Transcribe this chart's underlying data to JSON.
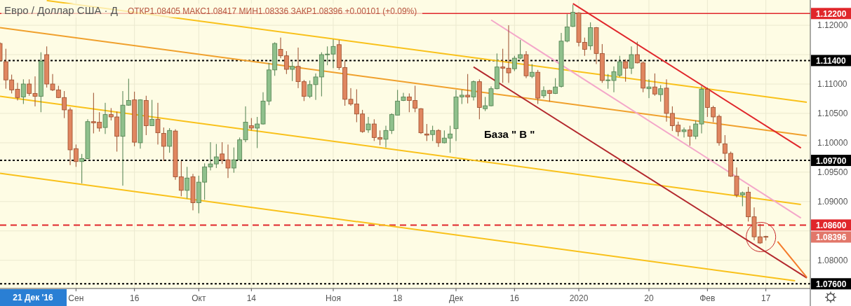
{
  "chart_data": {
    "type": "candlestick",
    "title": "Евро / Доллар США · Д",
    "subtitle": "ОТКР1.08405 МАКС1.08417 МИН1.08336 ЗАКР1.08396 +0.00101 (+0.09%)",
    "categories": [
      null,
      null,
      null,
      null,
      null,
      null,
      null,
      null,
      null,
      null,
      null,
      null,
      null,
      "Сен",
      null,
      null,
      null,
      null,
      null,
      null,
      null,
      null,
      null,
      "16",
      null,
      null,
      null,
      null,
      null,
      null,
      null,
      null,
      null,
      null,
      "Окт",
      null,
      null,
      null,
      null,
      null,
      null,
      null,
      null,
      "14",
      null,
      null,
      null,
      null,
      null,
      null,
      null,
      null,
      null,
      null,
      null,
      null,
      null,
      "Ноя",
      null,
      null,
      null,
      null,
      null,
      null,
      null,
      null,
      null,
      null,
      "18",
      null,
      null,
      null,
      null,
      null,
      null,
      null,
      null,
      null,
      "Дек",
      null,
      null,
      null,
      null,
      null,
      null,
      null,
      null,
      null,
      "16",
      null,
      null,
      null,
      null,
      null,
      null,
      null,
      null,
      null,
      null,
      "2020",
      null,
      null,
      null,
      null,
      null,
      null,
      null,
      null,
      null,
      null,
      null,
      "20",
      null,
      null,
      null,
      null,
      null,
      null,
      null,
      null,
      null,
      "Фев",
      null,
      null,
      null,
      null,
      null,
      null,
      null,
      null,
      null,
      "17",
      null,
      null,
      null,
      null,
      null,
      null,
      null
    ],
    "ohlc": [
      [
        1.1169,
        1.1171,
        1.1138,
        1.114
      ],
      [
        1.1138,
        1.116,
        1.1092,
        1.1107
      ],
      [
        1.1107,
        1.1116,
        1.1084,
        1.109
      ],
      [
        1.1091,
        1.1102,
        1.1072,
        1.1077
      ],
      [
        1.1078,
        1.1108,
        1.1066,
        1.11
      ],
      [
        1.11,
        1.1108,
        1.108,
        1.1084
      ],
      [
        1.1084,
        1.1113,
        1.1062,
        1.1079
      ],
      [
        1.1079,
        1.1154,
        1.1052,
        1.1139
      ],
      [
        1.115,
        1.1164,
        1.1094,
        1.11
      ],
      [
        1.11,
        1.1117,
        1.1088,
        1.109
      ],
      [
        1.109,
        1.1097,
        1.1076,
        1.1077
      ],
      [
        1.1077,
        1.1088,
        1.1042,
        1.1056
      ],
      [
        1.1056,
        1.106,
        1.0962,
        1.0988
      ],
      [
        1.099,
        1.0997,
        1.0959,
        1.0968
      ],
      [
        1.0968,
        1.0981,
        1.0931,
        1.0973
      ],
      [
        1.0973,
        1.104,
        1.0972,
        1.1036
      ],
      [
        1.1036,
        1.1085,
        1.1016,
        1.1034
      ],
      [
        1.1035,
        1.1052,
        1.1019,
        1.1025
      ],
      [
        1.1026,
        1.1068,
        1.1015,
        1.1048
      ],
      [
        1.1048,
        1.1059,
        1.1038,
        1.1044
      ],
      [
        1.1044,
        1.1053,
        1.0985,
        1.1011
      ],
      [
        1.1011,
        1.1088,
        1.0927,
        1.1064
      ],
      [
        1.1064,
        1.1109,
        1.1063,
        1.1072
      ],
      [
        1.1073,
        1.1087,
        1.0994,
        1.1001
      ],
      [
        1.1,
        1.1074,
        1.099,
        1.1073
      ],
      [
        1.1072,
        1.108,
        1.1013,
        1.1029
      ],
      [
        1.1029,
        1.1073,
        1.1029,
        1.104
      ],
      [
        1.104,
        1.1068,
        1.0997,
        1.1017
      ],
      [
        1.1016,
        1.1026,
        1.0969,
        1.0994
      ],
      [
        1.0994,
        1.1025,
        1.0983,
        1.1021
      ],
      [
        1.102,
        1.1023,
        1.0937,
        1.0942
      ],
      [
        1.0942,
        1.0969,
        1.0909,
        1.0919
      ],
      [
        1.0919,
        1.0959,
        1.0905,
        1.094
      ],
      [
        1.0942,
        1.0947,
        1.0885,
        1.0898
      ],
      [
        1.0898,
        1.0944,
        1.088,
        1.0933
      ],
      [
        1.0933,
        1.0965,
        1.0903,
        1.0959
      ],
      [
        1.0959,
        1.1001,
        1.0953,
        1.0964
      ],
      [
        1.0964,
        1.0998,
        1.0957,
        1.0976
      ],
      [
        1.0981,
        1.1001,
        1.0964,
        1.0971
      ],
      [
        1.0971,
        1.0997,
        1.094,
        1.0957
      ],
      [
        1.0957,
        1.0992,
        1.0949,
        1.0971
      ],
      [
        1.0971,
        1.1009,
        1.097,
        1.1005
      ],
      [
        1.1005,
        1.1062,
        1.1001,
        1.1035
      ],
      [
        1.1029,
        1.1042,
        1.1021,
        1.1025
      ],
      [
        1.1025,
        1.1044,
        1.0991,
        1.1032
      ],
      [
        1.1032,
        1.1086,
        1.1031,
        1.1071
      ],
      [
        1.1071,
        1.1136,
        1.1064,
        1.1124
      ],
      [
        1.1124,
        1.1171,
        1.1114,
        1.1169
      ],
      [
        1.1159,
        1.1179,
        1.1144,
        1.1148
      ],
      [
        1.1148,
        1.1156,
        1.1117,
        1.1125
      ],
      [
        1.1125,
        1.1138,
        1.1105,
        1.113
      ],
      [
        1.113,
        1.1162,
        1.1093,
        1.1104
      ],
      [
        1.1104,
        1.1107,
        1.1071,
        1.1079
      ],
      [
        1.1079,
        1.1106,
        1.1076,
        1.1099
      ],
      [
        1.1099,
        1.1118,
        1.1073,
        1.1112
      ],
      [
        1.1112,
        1.1154,
        1.1079,
        1.115
      ],
      [
        1.115,
        1.1164,
        1.1132,
        1.1151
      ],
      [
        1.1151,
        1.1176,
        1.1127,
        1.1164
      ],
      [
        1.1167,
        1.1175,
        1.1124,
        1.1128
      ],
      [
        1.1128,
        1.114,
        1.1063,
        1.1074
      ],
      [
        1.1074,
        1.1093,
        1.1063,
        1.1066
      ],
      [
        1.1066,
        1.1091,
        1.1035,
        1.1049
      ],
      [
        1.1049,
        1.1056,
        1.1017,
        1.1019
      ],
      [
        1.1022,
        1.1044,
        1.1017,
        1.1032
      ],
      [
        1.1032,
        1.104,
        1.1003,
        1.1009
      ],
      [
        1.1009,
        1.1021,
        1.0996,
        1.1006
      ],
      [
        1.1006,
        1.1029,
        1.0992,
        1.1021
      ],
      [
        1.1021,
        1.105,
        1.1015,
        1.1048
      ],
      [
        1.1047,
        1.109,
        1.1047,
        1.1071
      ],
      [
        1.1072,
        1.1085,
        1.1071,
        1.1078
      ],
      [
        1.1078,
        1.1084,
        1.1052,
        1.1072
      ],
      [
        1.1072,
        1.1097,
        1.1052,
        1.1059
      ],
      [
        1.1058,
        1.1059,
        1.1015,
        1.1017
      ],
      [
        1.1015,
        1.1032,
        1.1003,
        1.1013
      ],
      [
        1.1014,
        1.1029,
        1.1003,
        1.1021
      ],
      [
        1.1021,
        1.1023,
        1.0993,
        1.1
      ],
      [
        1.1,
        1.1021,
        1.0999,
        1.1008
      ],
      [
        1.1008,
        1.1029,
        1.0983,
        1.1015
      ],
      [
        1.1024,
        1.109,
        1.1003,
        1.1078
      ],
      [
        1.1078,
        1.109,
        1.1066,
        1.1081
      ],
      [
        1.1081,
        1.1117,
        1.1067,
        1.1078
      ],
      [
        1.1078,
        1.1106,
        1.1072,
        1.1104
      ],
      [
        1.1104,
        1.1108,
        1.104,
        1.106
      ],
      [
        1.1058,
        1.1078,
        1.1054,
        1.1063
      ],
      [
        1.1063,
        1.1096,
        1.1062,
        1.1092
      ],
      [
        1.1092,
        1.1152,
        1.1091,
        1.1129
      ],
      [
        1.1129,
        1.116,
        1.1102,
        1.1127
      ],
      [
        1.1127,
        1.12,
        1.1102,
        1.1119
      ],
      [
        1.1126,
        1.1148,
        1.1122,
        1.1144
      ],
      [
        1.1144,
        1.1175,
        1.1142,
        1.115
      ],
      [
        1.115,
        1.1156,
        1.111,
        1.1114
      ],
      [
        1.1113,
        1.1134,
        1.111,
        1.112
      ],
      [
        1.112,
        1.1124,
        1.1066,
        1.1076
      ],
      [
        1.108,
        1.1096,
        1.1076,
        1.1089
      ],
      [
        1.1089,
        1.109,
        1.107,
        1.1084
      ],
      [
        1.1084,
        1.111,
        1.1083,
        1.1095
      ],
      [
        1.1096,
        1.1187,
        1.1094,
        1.1173
      ],
      [
        1.1173,
        1.1219,
        1.1171,
        1.1197
      ],
      [
        1.1198,
        1.1235,
        1.1197,
        1.1222
      ],
      [
        1.1221,
        1.1222,
        1.1164,
        1.1171
      ],
      [
        1.1171,
        1.1179,
        1.1148,
        1.1159
      ],
      [
        1.1165,
        1.1205,
        1.1158,
        1.1196
      ],
      [
        1.1196,
        1.1197,
        1.1134,
        1.1152
      ],
      [
        1.1152,
        1.1168,
        1.1102,
        1.1106
      ],
      [
        1.1106,
        1.1117,
        1.1092,
        1.1107
      ],
      [
        1.1106,
        1.113,
        1.1086,
        1.1121
      ],
      [
        1.1115,
        1.1148,
        1.1112,
        1.1138
      ],
      [
        1.1138,
        1.1142,
        1.1104,
        1.1127
      ],
      [
        1.1127,
        1.1164,
        1.1117,
        1.115
      ],
      [
        1.115,
        1.1172,
        1.1135,
        1.1136
      ],
      [
        1.1136,
        1.1139,
        1.1086,
        1.1093
      ],
      [
        1.1092,
        1.1108,
        1.1076,
        1.1095
      ],
      [
        1.1095,
        1.1118,
        1.108,
        1.1083
      ],
      [
        1.1082,
        1.1098,
        1.107,
        1.1092
      ],
      [
        1.1093,
        1.1108,
        1.1036,
        1.105
      ],
      [
        1.105,
        1.1062,
        1.102,
        1.1029
      ],
      [
        1.103,
        1.1036,
        1.1011,
        1.1019
      ],
      [
        1.1019,
        1.1026,
        1.1009,
        1.1022
      ],
      [
        1.1022,
        1.1029,
        1.0995,
        1.1011
      ],
      [
        1.1011,
        1.1038,
        1.1006,
        1.1032
      ],
      [
        1.1032,
        1.1097,
        1.1016,
        1.1091
      ],
      [
        1.1091,
        1.1094,
        1.1044,
        1.106
      ],
      [
        1.106,
        1.1063,
        1.1035,
        1.1044
      ],
      [
        1.1045,
        1.1048,
        1.0995,
        1.1
      ],
      [
        1.0998,
        1.1013,
        1.0969,
        1.0982
      ],
      [
        1.0982,
        1.0985,
        1.0942,
        1.0943
      ],
      [
        1.0943,
        1.0958,
        1.0907,
        1.0911
      ],
      [
        1.0911,
        1.0917,
        1.0892,
        1.0915
      ],
      [
        1.0916,
        1.0925,
        1.0866,
        1.0874
      ],
      [
        1.0874,
        1.089,
        1.0834,
        1.084
      ],
      [
        1.084,
        1.0862,
        1.0828,
        1.08295
      ],
      [
        1.08405,
        1.08417,
        1.08336,
        1.08396
      ],
      null,
      null,
      null,
      null,
      null,
      null,
      null
    ],
    "series": [
      {
        "type": "line",
        "color": "#f9c11a",
        "values": [
          null,
          null,
          null,
          null,
          null,
          null,
          null,
          null,
          1.1242,
          null,
          null,
          null,
          null,
          null,
          null,
          null,
          null,
          null,
          null,
          null,
          null,
          null,
          null,
          null,
          null,
          null,
          null,
          null,
          null,
          null,
          null,
          null,
          null,
          null,
          null,
          null,
          null,
          null,
          null,
          null,
          null,
          null,
          null,
          null,
          null,
          null,
          null,
          null,
          null,
          null,
          null,
          null,
          null,
          null,
          null,
          null,
          null,
          null,
          null,
          null,
          null,
          null,
          null,
          null,
          null,
          null,
          null,
          null,
          null,
          null,
          null,
          null,
          null,
          null,
          null,
          null,
          null,
          null,
          null,
          null,
          null,
          null,
          null,
          null,
          null,
          null,
          null,
          null,
          null,
          null,
          null,
          null,
          null,
          null,
          null,
          null,
          null,
          null,
          null,
          null,
          null,
          null,
          null,
          null,
          null,
          null,
          null,
          null,
          null,
          null,
          null,
          null,
          null,
          null,
          null,
          null,
          null,
          null,
          null,
          null,
          null,
          null,
          null,
          null,
          null,
          null,
          null,
          null,
          null,
          null,
          null,
          null,
          null,
          null,
          null,
          null,
          null,
          null,
          1.1069
        ]
      },
      {
        "type": "line",
        "color": "#f0a02c",
        "values": [
          1.1196,
          null,
          null,
          null,
          null,
          null,
          null,
          null,
          null,
          null,
          null,
          null,
          null,
          null,
          null,
          null,
          null,
          null,
          null,
          null,
          null,
          null,
          null,
          null,
          null,
          null,
          null,
          null,
          null,
          null,
          null,
          null,
          null,
          null,
          null,
          null,
          null,
          null,
          null,
          null,
          null,
          null,
          null,
          null,
          null,
          null,
          null,
          null,
          null,
          null,
          null,
          null,
          null,
          null,
          null,
          null,
          null,
          null,
          null,
          null,
          null,
          null,
          null,
          null,
          null,
          null,
          null,
          null,
          null,
          null,
          null,
          null,
          null,
          null,
          null,
          null,
          null,
          null,
          null,
          null,
          null,
          null,
          null,
          null,
          null,
          null,
          null,
          null,
          null,
          null,
          null,
          null,
          null,
          null,
          null,
          null,
          null,
          null,
          null,
          null,
          null,
          null,
          null,
          null,
          null,
          null,
          null,
          null,
          null,
          null,
          null,
          null,
          null,
          null,
          null,
          null,
          null,
          null,
          null,
          null,
          null,
          null,
          null,
          null,
          null,
          null,
          null,
          null,
          null,
          null,
          null,
          null,
          null,
          null,
          null,
          null,
          null,
          null,
          1.1012
        ]
      },
      {
        "type": "line",
        "color": "#f9c11a",
        "values": [
          1.1079,
          null,
          null,
          null,
          null,
          null,
          null,
          null,
          null,
          null,
          null,
          null,
          null,
          null,
          null,
          null,
          null,
          null,
          null,
          null,
          null,
          null,
          null,
          null,
          null,
          null,
          null,
          null,
          null,
          null,
          null,
          null,
          null,
          null,
          null,
          null,
          null,
          null,
          null,
          null,
          null,
          null,
          null,
          null,
          null,
          null,
          null,
          null,
          null,
          null,
          null,
          null,
          null,
          null,
          null,
          null,
          null,
          null,
          null,
          null,
          null,
          null,
          null,
          null,
          null,
          null,
          null,
          null,
          null,
          null,
          null,
          null,
          null,
          null,
          null,
          null,
          null,
          null,
          null,
          null,
          null,
          null,
          null,
          null,
          null,
          null,
          null,
          null,
          null,
          null,
          null,
          null,
          null,
          null,
          null,
          null,
          null,
          null,
          null,
          null,
          null,
          null,
          null,
          null,
          null,
          null,
          null,
          null,
          null,
          null,
          null,
          null,
          null,
          null,
          null,
          null,
          null,
          null,
          null,
          null,
          null,
          null,
          null,
          null,
          null,
          null,
          null,
          null,
          null,
          null,
          null,
          null,
          null,
          null,
          null,
          null,
          null,
          1.0895,
          null
        ]
      },
      {
        "type": "line",
        "color": "#f9c11a",
        "values": [
          1.0948,
          null,
          null,
          null,
          null,
          null,
          null,
          null,
          null,
          null,
          null,
          null,
          null,
          null,
          null,
          null,
          null,
          null,
          null,
          null,
          null,
          null,
          null,
          null,
          null,
          null,
          null,
          null,
          null,
          null,
          null,
          null,
          null,
          null,
          null,
          null,
          null,
          null,
          null,
          null,
          null,
          null,
          null,
          null,
          null,
          null,
          null,
          null,
          null,
          null,
          null,
          null,
          null,
          null,
          null,
          null,
          null,
          null,
          null,
          null,
          null,
          null,
          null,
          null,
          null,
          null,
          null,
          null,
          null,
          null,
          null,
          null,
          null,
          null,
          null,
          null,
          null,
          null,
          null,
          null,
          null,
          null,
          null,
          null,
          null,
          null,
          null,
          null,
          null,
          null,
          null,
          null,
          null,
          null,
          null,
          null,
          null,
          null,
          null,
          null,
          null,
          null,
          null,
          null,
          null,
          null,
          null,
          null,
          null,
          null,
          null,
          null,
          null,
          null,
          null,
          null,
          null,
          null,
          null,
          null,
          null,
          null,
          null,
          null,
          null,
          null,
          null,
          null,
          null,
          null,
          null,
          null,
          null,
          null,
          null,
          null,
          1.0765,
          null,
          null
        ]
      },
      {
        "type": "line",
        "color": "#e0262b",
        "values": [
          null,
          null,
          null,
          null,
          null,
          null,
          null,
          null,
          null,
          null,
          null,
          null,
          null,
          null,
          null,
          null,
          null,
          null,
          null,
          null,
          null,
          null,
          null,
          null,
          null,
          null,
          null,
          null,
          null,
          null,
          null,
          null,
          null,
          null,
          null,
          null,
          null,
          null,
          null,
          null,
          null,
          null,
          null,
          null,
          null,
          null,
          null,
          null,
          null,
          null,
          null,
          null,
          null,
          null,
          null,
          null,
          null,
          null,
          null,
          null,
          null,
          null,
          null,
          null,
          null,
          null,
          null,
          null,
          null,
          null,
          null,
          null,
          null,
          null,
          null,
          null,
          null,
          null,
          null,
          null,
          null,
          null,
          null,
          null,
          null,
          null,
          null,
          null,
          null,
          null,
          null,
          null,
          null,
          null,
          null,
          null,
          null,
          null,
          1.1237,
          null,
          null,
          null,
          null,
          null,
          null,
          null,
          null,
          null,
          null,
          null,
          null,
          null,
          null,
          null,
          null,
          null,
          null,
          null,
          null,
          null,
          null,
          null,
          null,
          null,
          null,
          null,
          null,
          null,
          null,
          null,
          null,
          null,
          null,
          null,
          null,
          null,
          null,
          1.0991,
          null
        ]
      },
      {
        "type": "line",
        "color": "#f4a7c9",
        "values": [
          null,
          null,
          null,
          null,
          null,
          null,
          null,
          null,
          null,
          null,
          null,
          null,
          null,
          null,
          null,
          null,
          null,
          null,
          null,
          null,
          null,
          null,
          null,
          null,
          null,
          null,
          null,
          null,
          null,
          null,
          null,
          null,
          null,
          null,
          null,
          null,
          null,
          null,
          null,
          null,
          null,
          null,
          null,
          null,
          null,
          null,
          null,
          null,
          null,
          null,
          null,
          null,
          null,
          null,
          null,
          null,
          null,
          null,
          null,
          null,
          null,
          null,
          null,
          null,
          null,
          null,
          null,
          null,
          null,
          null,
          null,
          null,
          null,
          null,
          null,
          null,
          null,
          null,
          null,
          null,
          null,
          null,
          null,
          null,
          1.1209,
          null,
          null,
          null,
          null,
          null,
          null,
          null,
          null,
          null,
          null,
          null,
          null,
          null,
          null,
          null,
          null,
          null,
          null,
          null,
          null,
          null,
          null,
          null,
          null,
          null,
          null,
          null,
          null,
          null,
          null,
          null,
          null,
          null,
          null,
          null,
          null,
          null,
          null,
          null,
          null,
          null,
          null,
          null,
          null,
          null,
          null,
          null,
          null,
          null,
          null,
          null,
          null,
          1.0872,
          null
        ]
      },
      {
        "type": "line",
        "color": "#b3282d",
        "values": [
          null,
          null,
          null,
          null,
          null,
          null,
          null,
          null,
          null,
          null,
          null,
          null,
          null,
          null,
          null,
          null,
          null,
          null,
          null,
          null,
          null,
          null,
          null,
          null,
          null,
          null,
          null,
          null,
          null,
          null,
          null,
          null,
          null,
          null,
          null,
          null,
          null,
          null,
          null,
          null,
          null,
          null,
          null,
          null,
          null,
          null,
          null,
          null,
          null,
          null,
          null,
          null,
          null,
          null,
          null,
          null,
          null,
          null,
          null,
          null,
          null,
          null,
          null,
          null,
          null,
          null,
          null,
          null,
          null,
          null,
          null,
          null,
          null,
          null,
          null,
          null,
          null,
          null,
          null,
          null,
          null,
          1.1129,
          null,
          null,
          null,
          null,
          null,
          null,
          null,
          null,
          null,
          null,
          null,
          null,
          null,
          null,
          null,
          null,
          null,
          null,
          null,
          null,
          null,
          null,
          null,
          null,
          null,
          null,
          null,
          null,
          null,
          null,
          null,
          null,
          null,
          null,
          null,
          null,
          null,
          null,
          null,
          null,
          null,
          null,
          null,
          null,
          null,
          null,
          null,
          null,
          null,
          null,
          null,
          null,
          null,
          null,
          null,
          null,
          1.077
        ]
      },
      {
        "type": "line",
        "color": "#f47b2a",
        "values": [
          null,
          null,
          null,
          null,
          null,
          null,
          null,
          null,
          null,
          null,
          null,
          null,
          null,
          null,
          null,
          null,
          null,
          null,
          null,
          null,
          null,
          null,
          null,
          null,
          null,
          null,
          null,
          null,
          null,
          null,
          null,
          null,
          null,
          null,
          null,
          null,
          null,
          null,
          null,
          null,
          null,
          null,
          null,
          null,
          null,
          null,
          null,
          null,
          null,
          null,
          null,
          null,
          null,
          null,
          null,
          null,
          null,
          null,
          null,
          null,
          null,
          null,
          null,
          null,
          null,
          null,
          null,
          null,
          null,
          null,
          null,
          null,
          null,
          null,
          null,
          null,
          null,
          null,
          null,
          null,
          null,
          null,
          null,
          null,
          null,
          null,
          null,
          null,
          null,
          null,
          null,
          null,
          null,
          null,
          null,
          null,
          null,
          null,
          null,
          null,
          null,
          null,
          null,
          null,
          null,
          null,
          null,
          null,
          null,
          null,
          null,
          null,
          null,
          null,
          null,
          null,
          null,
          null,
          null,
          null,
          null,
          null,
          null,
          null,
          null,
          null,
          null,
          null,
          null,
          null,
          null,
          null,
          null,
          1.0832,
          null,
          null,
          null,
          null,
          1.0771
        ]
      }
    ],
    "ylim": [
      1.0752,
      1.1243
    ],
    "yticks": [
      {
        "value": 1.08,
        "label": "1.08000"
      },
      {
        "value": 1.085,
        "label": null
      },
      {
        "value": 1.09,
        "label": "1.09000"
      },
      {
        "value": 1.095,
        "label": "1.09500"
      },
      {
        "value": 1.1,
        "label": "1.10000"
      },
      {
        "value": 1.105,
        "label": "1.10500"
      },
      {
        "value": 1.11,
        "label": "1.11000"
      },
      {
        "value": 1.115,
        "label": null
      },
      {
        "value": 1.12,
        "label": "1.12000"
      }
    ],
    "grid": true,
    "ref_lines": [
      {
        "axis": "y",
        "value": 1.122,
        "label": "1.12200",
        "color": "#e0262b",
        "line_style": "solid"
      },
      {
        "axis": "y",
        "value": 1.114,
        "label": "1.11400",
        "color": "#000000",
        "line_style": "dotted"
      },
      {
        "axis": "y",
        "value": 1.097,
        "label": "1.09700",
        "color": "#000000",
        "line_style": "dotted"
      },
      {
        "axis": "y",
        "value": 1.086,
        "label": "1.08600",
        "color": "#e0262b",
        "line_style": "dashed"
      },
      {
        "axis": "y",
        "value": 1.076,
        "label": "1.07600",
        "color": "#000000",
        "line_style": "dotted"
      }
    ],
    "annotations": [
      "База \" В \"",
      "21 Дек '16",
      "1.08396"
    ]
  }
}
